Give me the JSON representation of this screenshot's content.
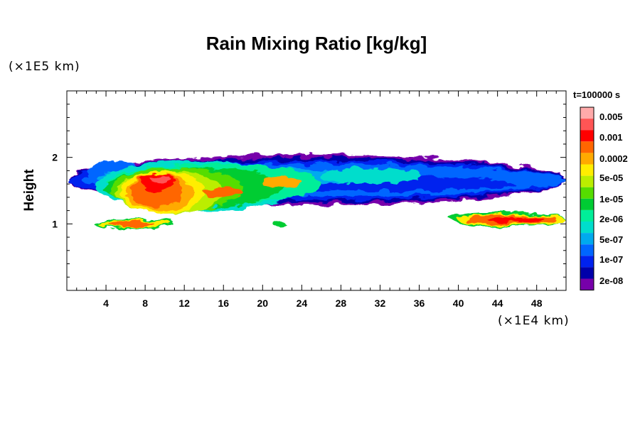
{
  "chart_data": {
    "type": "heatmap",
    "title": "Rain Mixing Ratio [kg/kg]",
    "ylabel": "Height",
    "xlabel": "",
    "x_unit": "(×1E4 km)",
    "y_unit": "(×1E5 km)",
    "time_label": "t=100000 s",
    "x_ticks": [
      4,
      8,
      12,
      16,
      20,
      24,
      28,
      32,
      36,
      40,
      44,
      48
    ],
    "y_ticks": [
      1,
      2
    ],
    "xlim": [
      0,
      51
    ],
    "ylim": [
      0,
      3
    ],
    "colorbar": {
      "labels": [
        "0.005",
        "0.001",
        "0.0002",
        "5e-05",
        "1e-05",
        "2e-06",
        "5e-07",
        "1e-07",
        "2e-08"
      ],
      "colors": [
        "#ffaaaa",
        "#ff5555",
        "#ff0000",
        "#ff6600",
        "#ffaa00",
        "#ffee00",
        "#bbee00",
        "#55dd00",
        "#00cc33",
        "#00ee99",
        "#00ddcc",
        "#00aaee",
        "#0066ff",
        "#0022ee",
        "#0000aa",
        "#7700aa"
      ]
    },
    "rain_regions": [
      {
        "x": [
          0,
          51
        ],
        "y": [
          1.25,
          2.05
        ],
        "level": "2e-08 to 1e-07"
      },
      {
        "x": [
          2,
          24
        ],
        "y": [
          1.1,
          2.0
        ],
        "level": "5e-07 to 5e-05"
      },
      {
        "x": [
          6,
          12
        ],
        "y": [
          1.3,
          1.9
        ],
        "level": "1e-05 to 0.005"
      },
      {
        "x": [
          3,
          11
        ],
        "y": [
          0.95,
          1.2
        ],
        "level": "1e-05 to 0.001"
      },
      {
        "x": [
          39,
          51
        ],
        "y": [
          0.95,
          1.2
        ],
        "level": "1e-05 to 0.001"
      }
    ]
  }
}
